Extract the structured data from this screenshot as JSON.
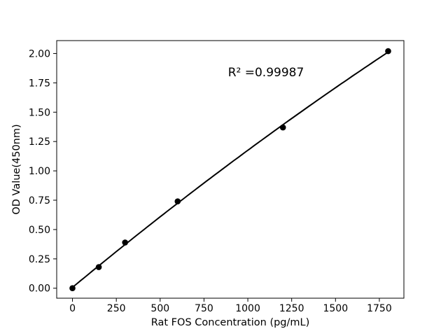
{
  "chart_data": {
    "type": "scatter",
    "title": "",
    "xlabel": "Rat FOS Concentration (pg/mL)",
    "ylabel": "OD Value(450nm)",
    "annotation": "R² =0.99987",
    "r_squared": 0.99987,
    "x": [
      0,
      150,
      300,
      600,
      1200,
      1800
    ],
    "y": [
      0.0,
      0.18,
      0.39,
      0.74,
      1.37,
      2.02
    ],
    "trendline": "quadratic",
    "x_ticks": [
      0,
      250,
      500,
      750,
      1000,
      1250,
      1500,
      1750
    ],
    "x_tick_labels": [
      "0",
      "250",
      "500",
      "750",
      "1000",
      "1250",
      "1500",
      "1750"
    ],
    "y_ticks": [
      0.0,
      0.25,
      0.5,
      0.75,
      1.0,
      1.25,
      1.5,
      1.75,
      2.0
    ],
    "y_tick_labels": [
      "0.00",
      "0.25",
      "0.50",
      "0.75",
      "1.00",
      "1.25",
      "1.50",
      "1.75",
      "2.00"
    ],
    "xlim": [
      -90,
      1890
    ],
    "ylim": [
      -0.085,
      2.11
    ],
    "grid": false,
    "legend": "none",
    "line_color": "#000000",
    "marker_color": "#000000",
    "axis_color": "#000000",
    "background_color": "#ffffff"
  }
}
